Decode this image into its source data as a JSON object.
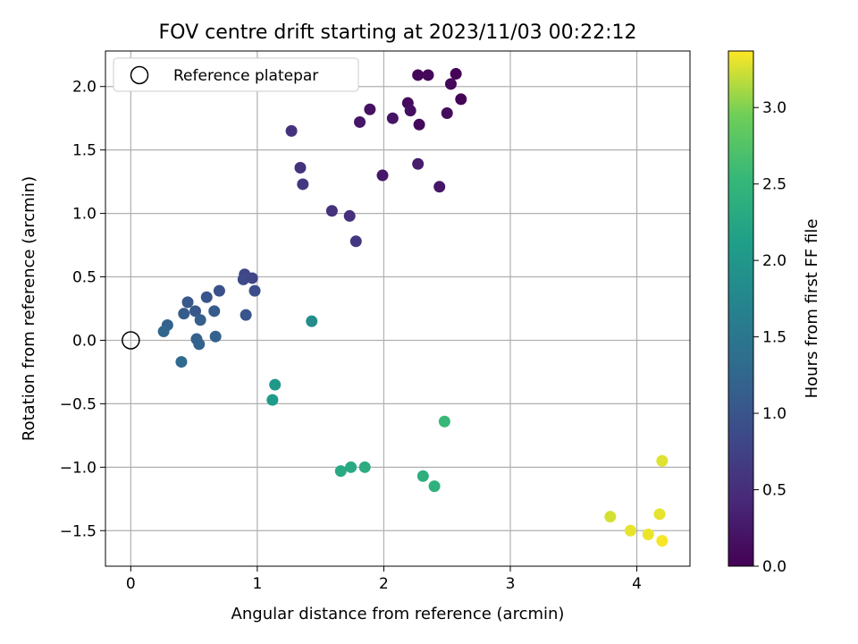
{
  "chart_data": {
    "type": "scatter",
    "title": "FOV centre drift starting at 2023/11/03 00:22:12",
    "xlabel": "Angular distance from reference (arcmin)",
    "ylabel": "Rotation from reference (arcmin)",
    "xlim": [
      -0.2,
      4.42
    ],
    "ylim": [
      -1.78,
      2.28
    ],
    "xticks": [
      0,
      1,
      2,
      3,
      4
    ],
    "xtick_labels": [
      "0",
      "1",
      "2",
      "3",
      "4"
    ],
    "yticks": [
      -1.5,
      -1.0,
      -0.5,
      0.0,
      0.5,
      1.0,
      1.5,
      2.0
    ],
    "ytick_labels": [
      "−1.5",
      "−1.0",
      "−0.5",
      "0.0",
      "0.5",
      "1.0",
      "1.5",
      "2.0"
    ],
    "grid": true,
    "legend": {
      "placement": "upper-left",
      "entries": [
        "Reference platepar"
      ]
    },
    "reference_point": {
      "x": 0,
      "y": 0,
      "style": "open-circle",
      "color": "#000000"
    },
    "colorbar": {
      "label": "Hours from first FF file",
      "colormap": "viridis",
      "range": [
        0.0,
        3.37
      ],
      "ticks": [
        0.0,
        0.5,
        1.0,
        1.5,
        2.0,
        2.5,
        3.0
      ],
      "tick_labels": [
        "0.0",
        "0.5",
        "1.0",
        "1.5",
        "2.0",
        "2.5",
        "3.0"
      ]
    },
    "series": [
      {
        "points": [
          {
            "x": 2.27,
            "y": 2.09,
            "t": 0.05
          },
          {
            "x": 2.35,
            "y": 2.09,
            "t": 0.07
          },
          {
            "x": 2.57,
            "y": 2.1,
            "t": 0.02
          },
          {
            "x": 2.53,
            "y": 2.02,
            "t": 0.08
          },
          {
            "x": 2.61,
            "y": 1.9,
            "t": 0.04
          },
          {
            "x": 2.19,
            "y": 1.87,
            "t": 0.1
          },
          {
            "x": 2.21,
            "y": 1.81,
            "t": 0.15
          },
          {
            "x": 1.89,
            "y": 1.82,
            "t": 0.18
          },
          {
            "x": 2.07,
            "y": 1.75,
            "t": 0.2
          },
          {
            "x": 2.5,
            "y": 1.79,
            "t": 0.12
          },
          {
            "x": 1.81,
            "y": 1.72,
            "t": 0.22
          },
          {
            "x": 2.28,
            "y": 1.7,
            "t": 0.09
          },
          {
            "x": 2.27,
            "y": 1.39,
            "t": 0.3
          },
          {
            "x": 1.99,
            "y": 1.3,
            "t": 0.25
          },
          {
            "x": 2.44,
            "y": 1.21,
            "t": 0.22
          },
          {
            "x": 1.27,
            "y": 1.65,
            "t": 0.55
          },
          {
            "x": 1.34,
            "y": 1.36,
            "t": 0.58
          },
          {
            "x": 1.36,
            "y": 1.23,
            "t": 0.6
          },
          {
            "x": 1.59,
            "y": 1.02,
            "t": 0.55
          },
          {
            "x": 1.73,
            "y": 0.98,
            "t": 0.52
          },
          {
            "x": 1.78,
            "y": 0.78,
            "t": 0.62
          },
          {
            "x": 0.9,
            "y": 0.52,
            "t": 0.8
          },
          {
            "x": 0.89,
            "y": 0.48,
            "t": 0.85
          },
          {
            "x": 0.96,
            "y": 0.49,
            "t": 0.82
          },
          {
            "x": 0.98,
            "y": 0.39,
            "t": 0.9
          },
          {
            "x": 0.7,
            "y": 0.39,
            "t": 0.95
          },
          {
            "x": 0.6,
            "y": 0.34,
            "t": 1.0
          },
          {
            "x": 0.45,
            "y": 0.3,
            "t": 1.05
          },
          {
            "x": 0.51,
            "y": 0.23,
            "t": 1.05
          },
          {
            "x": 0.42,
            "y": 0.21,
            "t": 1.1
          },
          {
            "x": 0.66,
            "y": 0.23,
            "t": 1.1
          },
          {
            "x": 0.55,
            "y": 0.16,
            "t": 1.15
          },
          {
            "x": 0.91,
            "y": 0.2,
            "t": 1.0
          },
          {
            "x": 0.29,
            "y": 0.12,
            "t": 1.2
          },
          {
            "x": 0.26,
            "y": 0.07,
            "t": 1.25
          },
          {
            "x": 0.67,
            "y": 0.03,
            "t": 1.2
          },
          {
            "x": 0.52,
            "y": 0.01,
            "t": 1.18
          },
          {
            "x": 0.54,
            "y": -0.03,
            "t": 1.2
          },
          {
            "x": 0.4,
            "y": -0.17,
            "t": 1.3
          },
          {
            "x": 1.43,
            "y": 0.15,
            "t": 1.85
          },
          {
            "x": 1.14,
            "y": -0.35,
            "t": 2.0
          },
          {
            "x": 1.12,
            "y": -0.47,
            "t": 2.05
          },
          {
            "x": 1.66,
            "y": -1.03,
            "t": 2.3
          },
          {
            "x": 1.74,
            "y": -1.0,
            "t": 2.3
          },
          {
            "x": 1.85,
            "y": -1.0,
            "t": 2.35
          },
          {
            "x": 2.31,
            "y": -1.07,
            "t": 2.4
          },
          {
            "x": 2.4,
            "y": -1.15,
            "t": 2.42
          },
          {
            "x": 2.48,
            "y": -0.64,
            "t": 2.55
          },
          {
            "x": 3.79,
            "y": -1.39,
            "t": 3.25
          },
          {
            "x": 3.95,
            "y": -1.5,
            "t": 3.3
          },
          {
            "x": 4.09,
            "y": -1.53,
            "t": 3.32
          },
          {
            "x": 4.18,
            "y": -1.37,
            "t": 3.3
          },
          {
            "x": 4.2,
            "y": -1.58,
            "t": 3.35
          },
          {
            "x": 4.2,
            "y": -0.95,
            "t": 3.28
          }
        ]
      }
    ]
  }
}
